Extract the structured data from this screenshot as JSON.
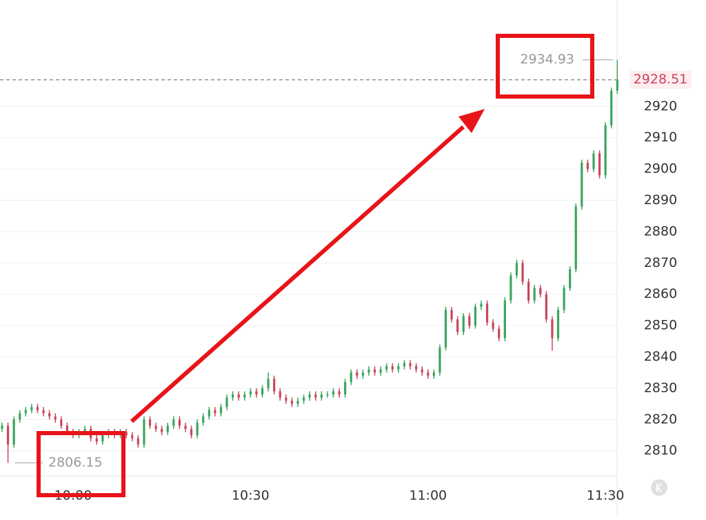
{
  "chart_data": {
    "type": "candlestick",
    "categories": [
      null,
      null,
      null,
      null,
      null,
      null,
      null,
      null,
      null,
      null,
      null,
      null,
      "10:00",
      null,
      null,
      null,
      null,
      null,
      null,
      null,
      null,
      null,
      null,
      null,
      null,
      null,
      null,
      null,
      null,
      null,
      null,
      null,
      null,
      null,
      null,
      null,
      null,
      null,
      null,
      null,
      null,
      null,
      "10:30",
      null,
      null,
      null,
      null,
      null,
      null,
      null,
      null,
      null,
      null,
      null,
      null,
      null,
      null,
      null,
      null,
      null,
      null,
      null,
      null,
      null,
      null,
      null,
      null,
      null,
      null,
      null,
      null,
      null,
      "11:00",
      null,
      null,
      null,
      null,
      null,
      null,
      null,
      null,
      null,
      null,
      null,
      null,
      null,
      null,
      null,
      null,
      null,
      null,
      null,
      null,
      null,
      null,
      null,
      null,
      null,
      null,
      null,
      null,
      null,
      "11:30",
      null,
      null
    ],
    "open": [
      2817,
      2818,
      2812,
      2820,
      2822,
      2823,
      2824,
      2823,
      2822,
      2821,
      2820,
      2818,
      2816,
      2815,
      2816,
      2817,
      2814,
      2813,
      2815,
      2816,
      2815,
      2816,
      2815,
      2814,
      2812,
      2820,
      2818,
      2817,
      2816,
      2818,
      2820,
      2818,
      2817,
      2815,
      2819,
      2821,
      2823,
      2822,
      2824,
      2827,
      2828,
      2827,
      2828,
      2829,
      2828,
      2830,
      2833,
      2829,
      2827,
      2826,
      2825,
      2826,
      2827,
      2828,
      2827,
      2828,
      2828,
      2829,
      2828,
      2832,
      2835,
      2834,
      2835,
      2836,
      2835,
      2836,
      2837,
      2836,
      2837,
      2838,
      2837,
      2836,
      2835,
      2834,
      2835,
      2843,
      2855,
      2852,
      2848,
      2853,
      2850,
      2856,
      2857,
      2851,
      2849,
      2846,
      2858,
      2866,
      2870,
      2864,
      2858,
      2862,
      2860,
      2852,
      2846,
      2855,
      2862,
      2868,
      2888,
      2902,
      2900,
      2905,
      2898,
      2914,
      2925
    ],
    "high": [
      2819,
      2819,
      2821,
      2823,
      2824,
      2825,
      2825,
      2824,
      2823,
      2822,
      2821,
      2819,
      2817,
      2817,
      2818,
      2818,
      2815,
      2816,
      2817,
      2817,
      2817,
      2817,
      2816,
      2815,
      2821,
      2821,
      2819,
      2818,
      2819,
      2821,
      2821,
      2819,
      2818,
      2820,
      2822,
      2824,
      2824,
      2825,
      2828,
      2829,
      2829,
      2829,
      2830,
      2830,
      2831,
      2835,
      2834,
      2830,
      2828,
      2827,
      2827,
      2828,
      2829,
      2829,
      2829,
      2829,
      2830,
      2830,
      2833,
      2836,
      2836,
      2836,
      2837,
      2837,
      2837,
      2838,
      2838,
      2838,
      2839,
      2839,
      2838,
      2837,
      2836,
      2836,
      2844,
      2856,
      2856,
      2853,
      2854,
      2854,
      2857,
      2858,
      2858,
      2852,
      2850,
      2859,
      2867,
      2871,
      2871,
      2865,
      2863,
      2863,
      2861,
      2853,
      2856,
      2863,
      2869,
      2889,
      2903,
      2903,
      2906,
      2906,
      2915,
      2926,
      2934.93
    ],
    "low": [
      2816,
      2806.15,
      2811,
      2819,
      2821,
      2822,
      2822,
      2821,
      2820,
      2819,
      2817,
      2815,
      2814,
      2814,
      2815,
      2813,
      2812,
      2812,
      2814,
      2814,
      2814,
      2814,
      2813,
      2811,
      2811,
      2817,
      2816,
      2815,
      2815,
      2817,
      2817,
      2816,
      2814,
      2814,
      2818,
      2820,
      2821,
      2821,
      2823,
      2826,
      2826,
      2826,
      2827,
      2827,
      2827,
      2829,
      2828,
      2826,
      2825,
      2824,
      2824,
      2825,
      2826,
      2826,
      2826,
      2827,
      2827,
      2827,
      2827,
      2831,
      2833,
      2833,
      2834,
      2834,
      2834,
      2835,
      2835,
      2835,
      2836,
      2836,
      2835,
      2834,
      2833,
      2833,
      2834,
      2842,
      2851,
      2847,
      2847,
      2849,
      2849,
      2855,
      2850,
      2848,
      2845,
      2845,
      2857,
      2865,
      2863,
      2857,
      2857,
      2859,
      2851,
      2842,
      2845,
      2854,
      2861,
      2867,
      2887,
      2899,
      2899,
      2897,
      2897,
      2913,
      2924
    ],
    "close": [
      2818,
      2812,
      2820,
      2822,
      2823,
      2824,
      2823,
      2822,
      2821,
      2820,
      2818,
      2816,
      2815,
      2816,
      2817,
      2814,
      2813,
      2815,
      2816,
      2815,
      2816,
      2815,
      2814,
      2812,
      2820,
      2818,
      2817,
      2816,
      2818,
      2820,
      2818,
      2817,
      2815,
      2819,
      2821,
      2823,
      2822,
      2824,
      2827,
      2828,
      2827,
      2828,
      2829,
      2828,
      2830,
      2833,
      2829,
      2827,
      2826,
      2825,
      2826,
      2827,
      2828,
      2827,
      2828,
      2828,
      2829,
      2828,
      2832,
      2835,
      2834,
      2835,
      2836,
      2835,
      2836,
      2837,
      2836,
      2837,
      2838,
      2837,
      2836,
      2835,
      2834,
      2835,
      2843,
      2855,
      2852,
      2848,
      2853,
      2850,
      2856,
      2857,
      2851,
      2849,
      2846,
      2858,
      2866,
      2870,
      2864,
      2858,
      2862,
      2860,
      2852,
      2846,
      2855,
      2862,
      2868,
      2888,
      2902,
      2900,
      2905,
      2898,
      2914,
      2925,
      2928.51
    ],
    "up_color": "#3ca55c",
    "down_color": "#c8475b",
    "ylim": [
      2802,
      2954
    ],
    "yticks": [
      2810,
      2820,
      2830,
      2840,
      2850,
      2860,
      2870,
      2880,
      2890,
      2900,
      2910,
      2920
    ],
    "grid": true
  }
}
